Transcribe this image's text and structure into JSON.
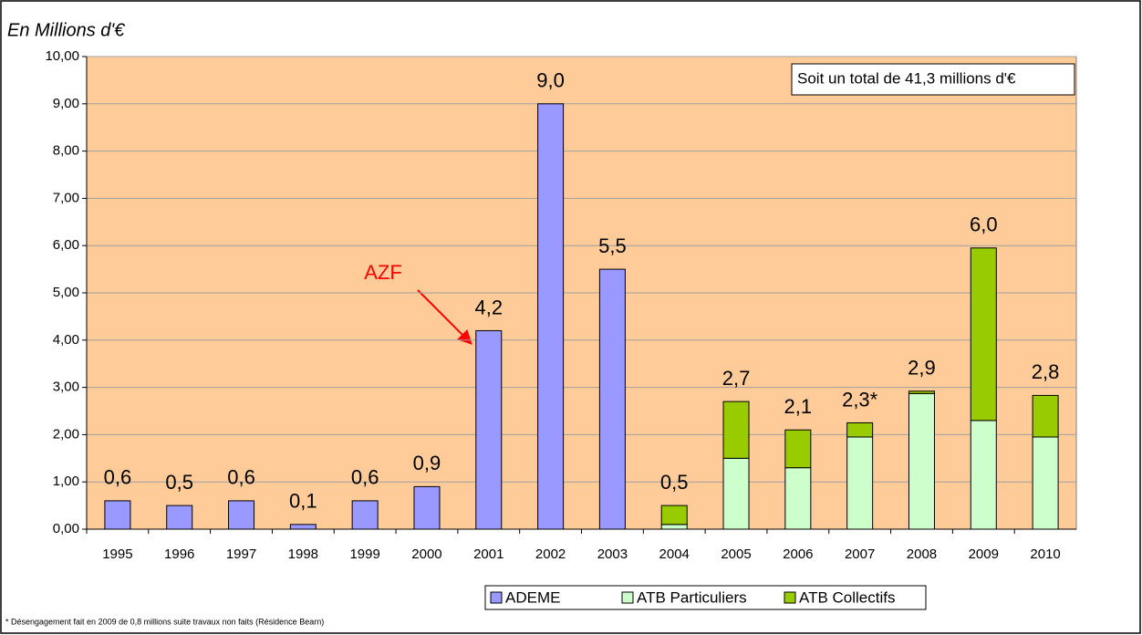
{
  "chart_data": {
    "type": "stacked_bar",
    "y_axis_label": "En Millions d'€",
    "categories": [
      "1995",
      "1996",
      "1997",
      "1998",
      "1999",
      "2000",
      "2001",
      "2002",
      "2003",
      "2004",
      "2005",
      "2006",
      "2007",
      "2008",
      "2009",
      "2010"
    ],
    "series": [
      {
        "name": "ADEME",
        "color": "#9999ff",
        "values": [
          0.6,
          0.5,
          0.6,
          0.1,
          0.6,
          0.9,
          4.2,
          9.0,
          5.5,
          null,
          null,
          null,
          null,
          null,
          null,
          null
        ]
      },
      {
        "name": "ATB Particuliers",
        "color": "#ccffcc",
        "values": [
          null,
          null,
          null,
          null,
          null,
          null,
          null,
          null,
          null,
          0.1,
          1.5,
          1.3,
          1.95,
          2.87,
          2.3,
          1.95
        ]
      },
      {
        "name": "ATB Collectifs",
        "color": "#99cc00",
        "values": [
          null,
          null,
          null,
          null,
          null,
          null,
          null,
          null,
          null,
          0.4,
          1.2,
          0.8,
          0.3,
          0.05,
          3.65,
          0.88
        ]
      }
    ],
    "total_labels": [
      "0,6",
      "0,5",
      "0,6",
      "0,1",
      "0,6",
      "0,9",
      "4,2",
      "9,0",
      "5,5",
      "0,5",
      "2,7",
      "2,1",
      "2,3*",
      "2,9",
      "6,0",
      "2,8"
    ],
    "ylim": [
      0,
      10
    ],
    "yticks": [
      {
        "value": 0,
        "label": "0,00"
      },
      {
        "value": 1,
        "label": "1,00"
      },
      {
        "value": 2,
        "label": "2,00"
      },
      {
        "value": 3,
        "label": "3,00"
      },
      {
        "value": 4,
        "label": "4,00"
      },
      {
        "value": 5,
        "label": "5,00"
      },
      {
        "value": 6,
        "label": "6,00"
      },
      {
        "value": 7,
        "label": "7,00"
      },
      {
        "value": 8,
        "label": "8,00"
      },
      {
        "value": 9,
        "label": "9,00"
      },
      {
        "value": 10,
        "label": "10,00"
      }
    ],
    "grid": true,
    "plot_background": "#ffcc99",
    "legend": "bottom",
    "annotations": {
      "total_box": "Soit un total de 41,3 millions d'€",
      "azf": "AZF",
      "footnote": "* Désengagement fait en 2009 de  0,8 millions suite travaux non faits (Résidence Bearn)"
    }
  }
}
